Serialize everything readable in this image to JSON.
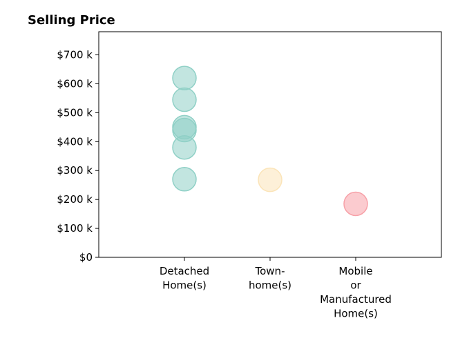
{
  "chart_data": {
    "type": "scatter",
    "title": "Selling Price",
    "categories": [
      [
        "Detached",
        "Home(s)"
      ],
      [
        "Town-",
        "home(s)"
      ],
      [
        "Mobile",
        "or",
        "Manufactured",
        "Home(s)"
      ]
    ],
    "yticks": [
      {
        "value": 0,
        "label": "$0"
      },
      {
        "value": 100,
        "label": "$100 k"
      },
      {
        "value": 200,
        "label": "$200 k"
      },
      {
        "value": 300,
        "label": "$300 k"
      },
      {
        "value": 400,
        "label": "$400 k"
      },
      {
        "value": 500,
        "label": "$500 k"
      },
      {
        "value": 600,
        "label": "$600 k"
      },
      {
        "value": 700,
        "label": "$700 k"
      }
    ],
    "ylim": [
      0,
      780
    ],
    "xlim": [
      -1,
      3
    ],
    "series": [
      {
        "category": 0,
        "color": "#8fd0c6",
        "values": [
          620,
          545,
          450,
          440,
          380,
          270
        ]
      },
      {
        "category": 1,
        "color": "#fbe4b8",
        "values": [
          268
        ]
      },
      {
        "category": 2,
        "color": "#f7a1a8",
        "values": [
          185
        ]
      }
    ],
    "grid": false,
    "legend": "none"
  }
}
